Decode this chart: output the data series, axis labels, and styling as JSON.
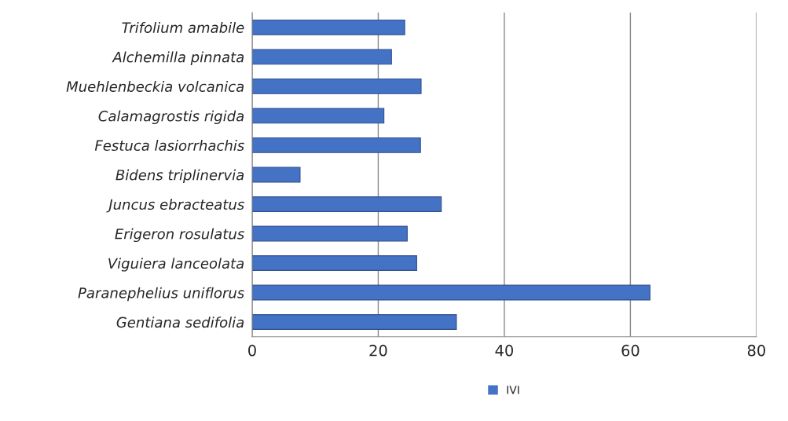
{
  "chart_data": {
    "type": "bar",
    "orientation": "horizontal",
    "categories": [
      "Trifolium amabile",
      "Alchemilla pinnata",
      "Muehlenbeckia volcanica",
      "Calamagrostis rigida",
      "Festuca lasiorrhachis",
      "Bidens triplinervia",
      "Juncus ebracteatus",
      "Erigeron rosulatus",
      "Viguiera lanceolata",
      "Paranephelius uniflorus",
      "Gentiana sedifolia"
    ],
    "series": [
      {
        "name": "IVI",
        "color": "#4472c4",
        "values": [
          24.2,
          22.1,
          26.8,
          20.9,
          26.7,
          7.6,
          30.0,
          24.6,
          26.1,
          63.1,
          32.4
        ]
      }
    ],
    "xlim": [
      0,
      80
    ],
    "xticks": [
      0,
      20,
      40,
      60,
      80
    ],
    "grid": "x",
    "legend": "bottom"
  }
}
